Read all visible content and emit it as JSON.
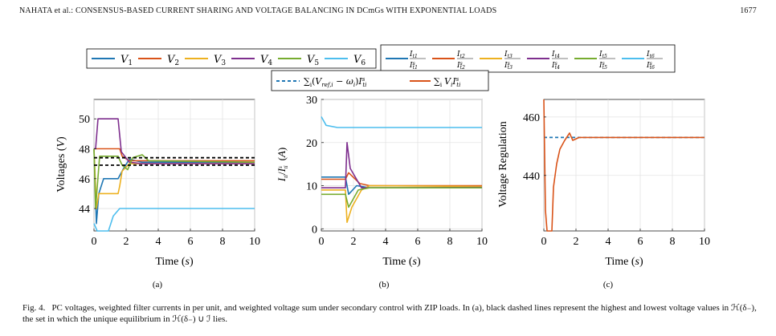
{
  "header": {
    "left": "NAHATA et al.: CONSENSUS-BASED CURRENT SHARING AND VOLTAGE BALANCING IN DCmGs WITH EXPONENTIAL LOADS",
    "page_number": "1677"
  },
  "colors": {
    "blue": "#1f77b4",
    "red": "#d95319",
    "yellow": "#edb120",
    "purple": "#7e2f8e",
    "green": "#77ac30",
    "cyan": "#4dbeee",
    "black": "#000000"
  },
  "legends": {
    "voltages": [
      "V1",
      "V2",
      "V3",
      "V4",
      "V5",
      "V6"
    ],
    "currents": [
      "It1/Ist1",
      "It2/Ist2",
      "It3/Ist3",
      "It4/Ist4",
      "It5/Ist5",
      "It6/Ist6"
    ],
    "regulation": [
      "Σi(Vref,i − ωi)Isti",
      "Σi Vi Isti"
    ]
  },
  "chart_data": [
    {
      "id": "a",
      "type": "line",
      "panel_label": "(a)",
      "xlabel": "Time (s)",
      "ylabel": "Voltages (V)",
      "xlim": [
        0,
        10
      ],
      "ylim": [
        42.5,
        51.3
      ],
      "xticks": [
        "0",
        "2",
        "4",
        "6",
        "8",
        "10"
      ],
      "yticks": [
        "44",
        "46",
        "48",
        "50"
      ],
      "ytick_values": [
        44,
        46,
        48,
        50
      ],
      "series": [
        {
          "name": "V1",
          "color": "blue",
          "points": [
            [
              0,
              48
            ],
            [
              0.15,
              43
            ],
            [
              0.3,
              45
            ],
            [
              0.6,
              46
            ],
            [
              1.5,
              46
            ],
            [
              1.8,
              46.6
            ],
            [
              2.2,
              47.3
            ],
            [
              3,
              47.1
            ],
            [
              10,
              47.1
            ]
          ]
        },
        {
          "name": "V2",
          "color": "red",
          "points": [
            [
              0,
              48
            ],
            [
              0.15,
              48
            ],
            [
              0.3,
              48
            ],
            [
              1.6,
              48
            ],
            [
              1.75,
              47.5
            ],
            [
              2.2,
              47.2
            ],
            [
              3.5,
              47.2
            ],
            [
              10,
              47.2
            ]
          ]
        },
        {
          "name": "V3",
          "color": "yellow",
          "points": [
            [
              0,
              48
            ],
            [
              0.15,
              44
            ],
            [
              0.3,
              45
            ],
            [
              1.5,
              45
            ],
            [
              1.6,
              45.5
            ],
            [
              1.75,
              46.5
            ],
            [
              2.2,
              47
            ],
            [
              3,
              47
            ],
            [
              10,
              47
            ]
          ]
        },
        {
          "name": "V4",
          "color": "purple",
          "points": [
            [
              0,
              48
            ],
            [
              0.1,
              48
            ],
            [
              0.25,
              50
            ],
            [
              1.5,
              50
            ],
            [
              1.7,
              47.8
            ],
            [
              2.2,
              47.1
            ],
            [
              3,
              47
            ],
            [
              10,
              47
            ]
          ]
        },
        {
          "name": "V5",
          "color": "green",
          "points": [
            [
              0,
              48
            ],
            [
              0.1,
              44
            ],
            [
              0.35,
              47.5
            ],
            [
              1.5,
              47.5
            ],
            [
              1.75,
              46.9
            ],
            [
              2.1,
              46.6
            ],
            [
              2.4,
              47.4
            ],
            [
              3,
              47.6
            ],
            [
              3.4,
              47.2
            ],
            [
              10,
              47.1
            ]
          ]
        },
        {
          "name": "V6",
          "color": "cyan",
          "points": [
            [
              0,
              43
            ],
            [
              0.2,
              42.5
            ],
            [
              0.9,
              42.5
            ],
            [
              1.2,
              43.5
            ],
            [
              1.6,
              44
            ],
            [
              10,
              44
            ]
          ]
        },
        {
          "name": "upper bound",
          "color": "black",
          "dashed": true,
          "points": [
            [
              0,
              47.4
            ],
            [
              10,
              47.4
            ]
          ]
        },
        {
          "name": "lower bound",
          "color": "black",
          "dashed": true,
          "points": [
            [
              0,
              46.9
            ],
            [
              10,
              46.9
            ]
          ]
        }
      ]
    },
    {
      "id": "b",
      "type": "line",
      "panel_label": "(b)",
      "xlabel": "Time (s)",
      "ylabel": "It i / Ist i (A)",
      "xlim": [
        0,
        10
      ],
      "ylim": [
        -0.5,
        30
      ],
      "xticks": [
        "0",
        "2",
        "4",
        "6",
        "8",
        "10"
      ],
      "yticks": [
        "0",
        "10",
        "20",
        "30"
      ],
      "ytick_values": [
        0,
        10,
        20,
        30
      ],
      "series": [
        {
          "name": "It1/Ist1",
          "color": "blue",
          "points": [
            [
              0,
              12
            ],
            [
              1.5,
              12
            ],
            [
              1.7,
              8
            ],
            [
              2.2,
              10
            ],
            [
              3,
              9.5
            ],
            [
              10,
              9.5
            ]
          ]
        },
        {
          "name": "It2/Ist2",
          "color": "red",
          "points": [
            [
              0,
              11.5
            ],
            [
              1.5,
              11.5
            ],
            [
              1.7,
              13
            ],
            [
              2.4,
              10.5
            ],
            [
              3,
              10
            ],
            [
              10,
              10
            ]
          ]
        },
        {
          "name": "It3/Ist3",
          "color": "yellow",
          "points": [
            [
              0,
              9
            ],
            [
              1.5,
              9
            ],
            [
              1.6,
              1.5
            ],
            [
              1.9,
              5
            ],
            [
              2.5,
              9
            ],
            [
              3,
              10
            ],
            [
              10,
              9.8
            ]
          ]
        },
        {
          "name": "It4/Ist4",
          "color": "purple",
          "points": [
            [
              0,
              9.5
            ],
            [
              1.5,
              9.5
            ],
            [
              1.6,
              20
            ],
            [
              1.8,
              14
            ],
            [
              2.5,
              9.5
            ],
            [
              10,
              9.6
            ]
          ]
        },
        {
          "name": "It5/Ist5",
          "color": "green",
          "points": [
            [
              0,
              8
            ],
            [
              1.5,
              8
            ],
            [
              1.7,
              5
            ],
            [
              2.3,
              9
            ],
            [
              3,
              9.5
            ],
            [
              10,
              9.5
            ]
          ]
        },
        {
          "name": "It6/Ist6",
          "color": "cyan",
          "points": [
            [
              0,
              26
            ],
            [
              0.3,
              24
            ],
            [
              1,
              23.5
            ],
            [
              10,
              23.5
            ]
          ]
        }
      ]
    },
    {
      "id": "c",
      "type": "line",
      "panel_label": "(c)",
      "xlabel": "Time (s)",
      "ylabel": "Voltage Regulation",
      "xlim": [
        0,
        10
      ],
      "ylim": [
        421,
        466
      ],
      "xticks": [
        "0",
        "2",
        "4",
        "6",
        "8",
        "10"
      ],
      "yticks": [
        "440",
        "460"
      ],
      "ytick_values": [
        440,
        460
      ],
      "series": [
        {
          "name": "reference",
          "color": "blue",
          "dashed": true,
          "points": [
            [
              0,
              453
            ],
            [
              10,
              453
            ]
          ]
        },
        {
          "name": "Σi Vi Isti",
          "color": "red",
          "points": [
            [
              0,
              466
            ],
            [
              0.1,
              428
            ],
            [
              0.2,
              421
            ],
            [
              0.5,
              421
            ],
            [
              0.6,
              436
            ],
            [
              0.8,
              444
            ],
            [
              1,
              449
            ],
            [
              1.3,
              452
            ],
            [
              1.6,
              454.5
            ],
            [
              1.8,
              452
            ],
            [
              2.2,
              453
            ],
            [
              10,
              453
            ]
          ]
        }
      ]
    }
  ],
  "caption": {
    "label": "Fig. 4.",
    "text": "PC voltages, weighted filter currents in per unit, and weighted voltage sum under secondary control with ZIP loads. In (a), black dashed lines represent the highest and lowest voltage values in ℋ(δ₋), the set in which the unique equilibrium in ℋ(δ₋) ∪ ℐ lies."
  }
}
